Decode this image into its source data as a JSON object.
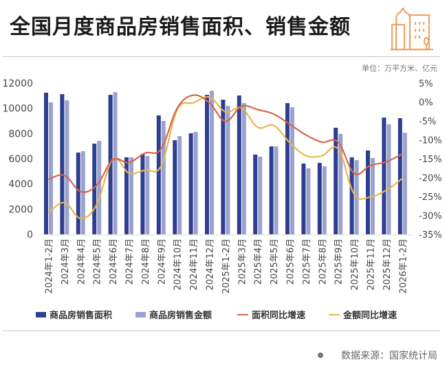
{
  "header": {
    "title": "全国月度商品房销售面积、销售金额",
    "unit": "单位：万平方米、亿元",
    "icon": "building-icon"
  },
  "colors": {
    "area_bar": "#2e3f8f",
    "amount_bar": "#9aa3d0",
    "area_line": "#d9634a",
    "amount_line": "#e8b54a",
    "icon": "#eea366"
  },
  "legend": [
    {
      "label": "商品房销售面积",
      "type": "bar",
      "color": "#2e3f8f"
    },
    {
      "label": "商品房销售金额",
      "type": "bar",
      "color": "#9aa3d0"
    },
    {
      "label": "面积同比增速",
      "type": "line",
      "color": "#d9634a"
    },
    {
      "label": "金额同比增速",
      "type": "line",
      "color": "#e8b54a"
    }
  ],
  "footer": {
    "source": "数据来源：国家统计局"
  },
  "chart_data": {
    "type": "bar",
    "title": "全国月度商品房销售面积、销售金额",
    "xlabel": "",
    "ylabel": "万平方米、亿元",
    "y2label": "同比增速",
    "ylim": [
      0,
      12000
    ],
    "y2lim": [
      -35,
      5
    ],
    "yticks": [
      "0",
      "2000",
      "4000",
      "6000",
      "8000",
      "10000",
      "12000"
    ],
    "y2ticks": [
      "5%",
      "0%",
      "-5%",
      "-10%",
      "-15%",
      "-20%",
      "-25%",
      "-30%",
      "-35%"
    ],
    "grid": false,
    "legend_position": "bottom",
    "categories": [
      "2024年1-2月",
      "2024年3月",
      "2024年4月",
      "2024年5月",
      "2024年6月",
      "2024年7月",
      "2024年8月",
      "2024年9月",
      "2024年10月",
      "2024年11月",
      "2024年12月",
      "2025年1-2月",
      "2025年3月",
      "2025年4月",
      "2025年5月",
      "2025年6月",
      "2025年7月",
      "2025年8月",
      "2025年9月",
      "2025年10月",
      "2025年11月",
      "2025年12月",
      "2026年1-2月"
    ],
    "series": [
      {
        "name": "商品房销售面积",
        "type": "bar",
        "axis": "left",
        "values": [
          11240,
          11130,
          6490,
          7200,
          11070,
          6110,
          6380,
          9440,
          7470,
          8020,
          11070,
          10690,
          11020,
          6330,
          6980,
          10420,
          5620,
          5670,
          8460,
          6110,
          6660,
          9270,
          9220
        ]
      },
      {
        "name": "商品房销售金额",
        "type": "bar",
        "axis": "left",
        "values": [
          10470,
          10640,
          6600,
          7420,
          11290,
          6110,
          6220,
          9000,
          7800,
          8130,
          11400,
          10200,
          10420,
          6170,
          6980,
          10090,
          5240,
          5400,
          7970,
          5890,
          6060,
          8730,
          8070
        ]
      },
      {
        "name": "面积同比增速",
        "type": "line",
        "axis": "right",
        "values": [
          -20.5,
          -19.4,
          -23.7,
          -22.0,
          -15.3,
          -16.0,
          -13.5,
          -12.4,
          -1.6,
          1.8,
          -0.2,
          -5.1,
          -1.1,
          -2.0,
          -3.2,
          -5.9,
          -8.7,
          -10.6,
          -10.6,
          -18.9,
          -16.8,
          -15.8,
          -13.7
        ]
      },
      {
        "name": "金额同比增速",
        "type": "line",
        "axis": "right",
        "values": [
          -29.3,
          -26.6,
          -30.8,
          -27.1,
          -15.1,
          -18.8,
          -18.0,
          -16.9,
          -2.0,
          -0.2,
          1.3,
          -2.6,
          -1.6,
          -6.7,
          -6.2,
          -10.8,
          -14.2,
          -14.2,
          -12.4,
          -24.4,
          -25.1,
          -23.3,
          -20.2
        ]
      }
    ]
  }
}
